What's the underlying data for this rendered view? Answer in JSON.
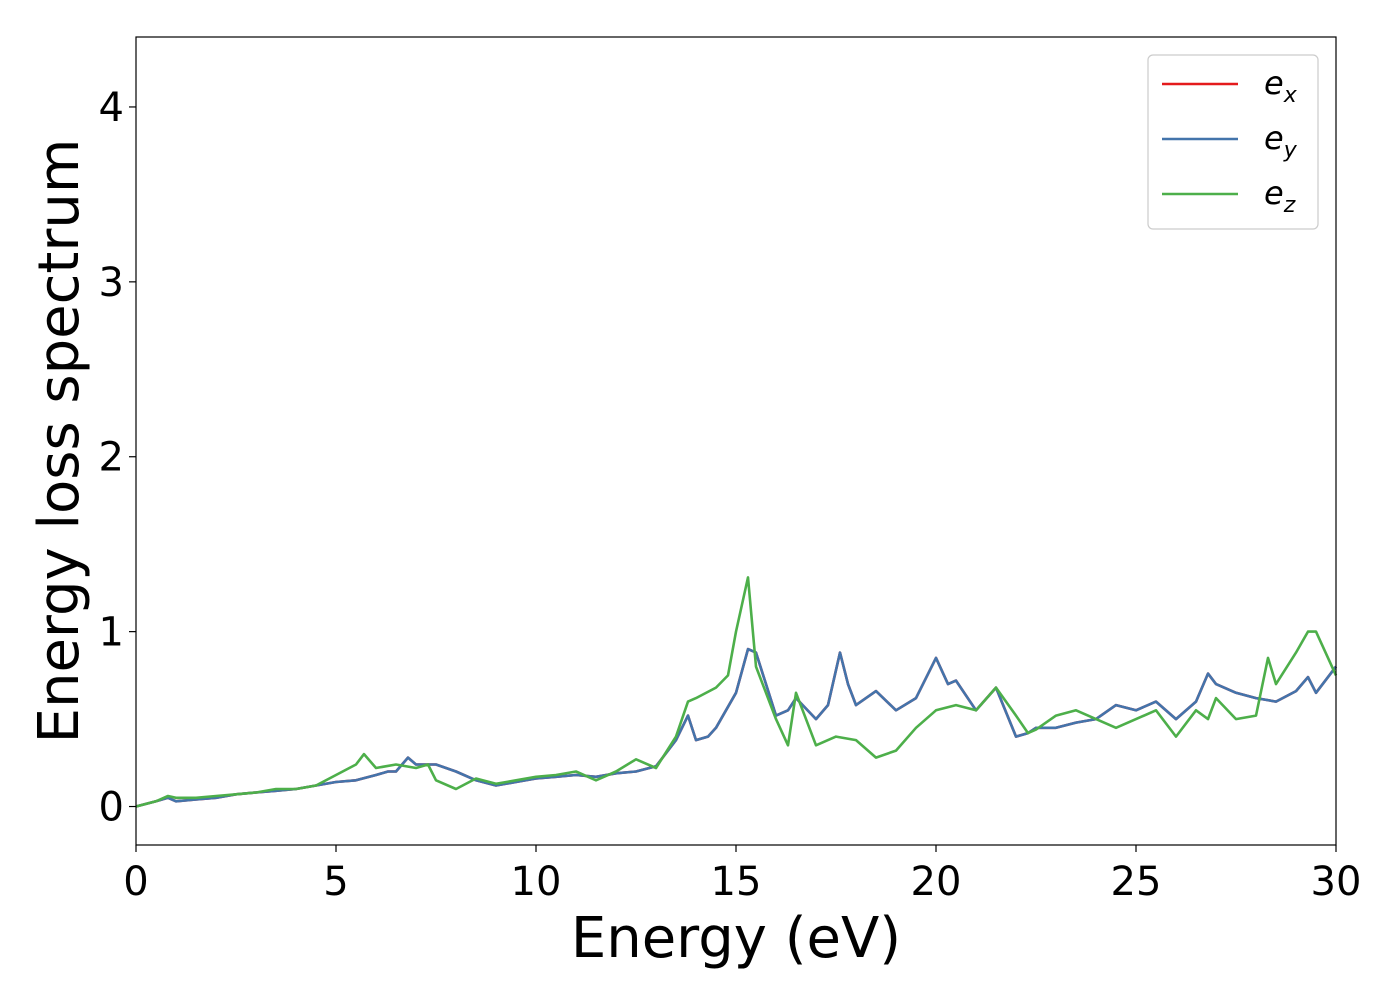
{
  "chart_data": {
    "type": "line",
    "xlabel": "Energy (eV)",
    "ylabel": "Energy loss spectrum",
    "xlim": [
      0,
      30
    ],
    "ylim": [
      -0.22,
      4.4
    ],
    "xticks": [
      0,
      5,
      10,
      15,
      20,
      25,
      30
    ],
    "yticks": [
      0,
      1,
      2,
      3,
      4
    ],
    "grid": false,
    "legend_position": "top-right",
    "series": [
      {
        "name": "e_x",
        "label_base": "e",
        "label_sub": "x",
        "color": "#e41a1c",
        "x": [
          0,
          0.5,
          0.8,
          1.0,
          1.5,
          2.0,
          2.5,
          3.0,
          3.5,
          4.0,
          4.5,
          5.0,
          5.5,
          6.0,
          6.3,
          6.5,
          6.8,
          7.0,
          7.5,
          8.0,
          8.5,
          9.0,
          9.5,
          10.0,
          10.5,
          11.0,
          11.5,
          12.0,
          12.5,
          13.0,
          13.5,
          13.8,
          14.0,
          14.3,
          14.5,
          15.0,
          15.3,
          15.5,
          16.0,
          16.3,
          16.5,
          17.0,
          17.3,
          17.6,
          17.8,
          18.0,
          18.5,
          19.0,
          19.5,
          20.0,
          20.3,
          20.5,
          21.0,
          21.5,
          22.0,
          22.3,
          22.5,
          23.0,
          23.5,
          24.0,
          24.5,
          25.0,
          25.5,
          26.0,
          26.5,
          26.8,
          27.0,
          27.5,
          28.0,
          28.5,
          29.0,
          29.3,
          29.5,
          30.0
        ],
        "y": [
          0,
          0.03,
          0.05,
          0.03,
          0.04,
          0.05,
          0.07,
          0.08,
          0.09,
          0.1,
          0.12,
          0.14,
          0.15,
          0.18,
          0.2,
          0.2,
          0.28,
          0.24,
          0.24,
          0.2,
          0.15,
          0.12,
          0.14,
          0.16,
          0.17,
          0.18,
          0.17,
          0.19,
          0.2,
          0.23,
          0.38,
          0.52,
          0.38,
          0.4,
          0.45,
          0.65,
          0.9,
          0.88,
          0.52,
          0.55,
          0.62,
          0.5,
          0.58,
          0.88,
          0.7,
          0.58,
          0.66,
          0.55,
          0.62,
          0.85,
          0.7,
          0.72,
          0.55,
          0.68,
          0.4,
          0.42,
          0.45,
          0.45,
          0.48,
          0.5,
          0.58,
          0.55,
          0.6,
          0.5,
          0.6,
          0.76,
          0.7,
          0.65,
          0.62,
          0.6,
          0.66,
          0.74,
          0.65,
          0.8
        ]
      },
      {
        "name": "e_y",
        "label_base": "e",
        "label_sub": "y",
        "color": "#4374ab",
        "x": [
          0,
          0.5,
          0.8,
          1.0,
          1.5,
          2.0,
          2.5,
          3.0,
          3.5,
          4.0,
          4.5,
          5.0,
          5.5,
          6.0,
          6.3,
          6.5,
          6.8,
          7.0,
          7.5,
          8.0,
          8.5,
          9.0,
          9.5,
          10.0,
          10.5,
          11.0,
          11.5,
          12.0,
          12.5,
          13.0,
          13.5,
          13.8,
          14.0,
          14.3,
          14.5,
          15.0,
          15.3,
          15.5,
          16.0,
          16.3,
          16.5,
          17.0,
          17.3,
          17.6,
          17.8,
          18.0,
          18.5,
          19.0,
          19.5,
          20.0,
          20.3,
          20.5,
          21.0,
          21.5,
          22.0,
          22.3,
          22.5,
          23.0,
          23.5,
          24.0,
          24.5,
          25.0,
          25.5,
          26.0,
          26.5,
          26.8,
          27.0,
          27.5,
          28.0,
          28.5,
          29.0,
          29.3,
          29.5,
          30.0
        ],
        "y": [
          0,
          0.03,
          0.05,
          0.03,
          0.04,
          0.05,
          0.07,
          0.08,
          0.09,
          0.1,
          0.12,
          0.14,
          0.15,
          0.18,
          0.2,
          0.2,
          0.28,
          0.24,
          0.24,
          0.2,
          0.15,
          0.12,
          0.14,
          0.16,
          0.17,
          0.18,
          0.17,
          0.19,
          0.2,
          0.23,
          0.38,
          0.52,
          0.38,
          0.4,
          0.45,
          0.65,
          0.9,
          0.88,
          0.52,
          0.55,
          0.62,
          0.5,
          0.58,
          0.88,
          0.7,
          0.58,
          0.66,
          0.55,
          0.62,
          0.85,
          0.7,
          0.72,
          0.55,
          0.68,
          0.4,
          0.42,
          0.45,
          0.45,
          0.48,
          0.5,
          0.58,
          0.55,
          0.6,
          0.5,
          0.6,
          0.76,
          0.7,
          0.65,
          0.62,
          0.6,
          0.66,
          0.74,
          0.65,
          0.8
        ]
      },
      {
        "name": "e_z",
        "label_base": "e",
        "label_sub": "z",
        "color": "#4daf4a",
        "x": [
          0,
          0.5,
          0.8,
          1.0,
          1.5,
          2.0,
          2.5,
          3.0,
          3.5,
          4.0,
          4.5,
          5.0,
          5.5,
          5.7,
          6.0,
          6.5,
          7.0,
          7.3,
          7.5,
          8.0,
          8.5,
          9.0,
          9.5,
          10.0,
          10.5,
          11.0,
          11.5,
          12.0,
          12.5,
          13.0,
          13.5,
          13.8,
          14.0,
          14.5,
          14.8,
          15.0,
          15.3,
          15.5,
          16.0,
          16.3,
          16.5,
          17.0,
          17.5,
          18.0,
          18.5,
          19.0,
          19.5,
          20.0,
          20.5,
          21.0,
          21.5,
          22.0,
          22.3,
          22.5,
          23.0,
          23.5,
          24.0,
          24.5,
          25.0,
          25.5,
          26.0,
          26.5,
          26.8,
          27.0,
          27.5,
          28.0,
          28.3,
          28.5,
          29.0,
          29.3,
          29.5,
          30.0
        ],
        "y": [
          0,
          0.03,
          0.06,
          0.05,
          0.05,
          0.06,
          0.07,
          0.08,
          0.1,
          0.1,
          0.12,
          0.18,
          0.24,
          0.3,
          0.22,
          0.24,
          0.22,
          0.24,
          0.15,
          0.1,
          0.16,
          0.13,
          0.15,
          0.17,
          0.18,
          0.2,
          0.15,
          0.2,
          0.27,
          0.22,
          0.4,
          0.6,
          0.62,
          0.68,
          0.75,
          1.0,
          1.31,
          0.8,
          0.5,
          0.35,
          0.65,
          0.35,
          0.4,
          0.38,
          0.28,
          0.32,
          0.45,
          0.55,
          0.58,
          0.55,
          0.68,
          0.52,
          0.42,
          0.44,
          0.52,
          0.55,
          0.5,
          0.45,
          0.5,
          0.55,
          0.4,
          0.55,
          0.5,
          0.62,
          0.5,
          0.52,
          0.85,
          0.7,
          0.88,
          1.0,
          1.0,
          0.75
        ]
      }
    ]
  }
}
